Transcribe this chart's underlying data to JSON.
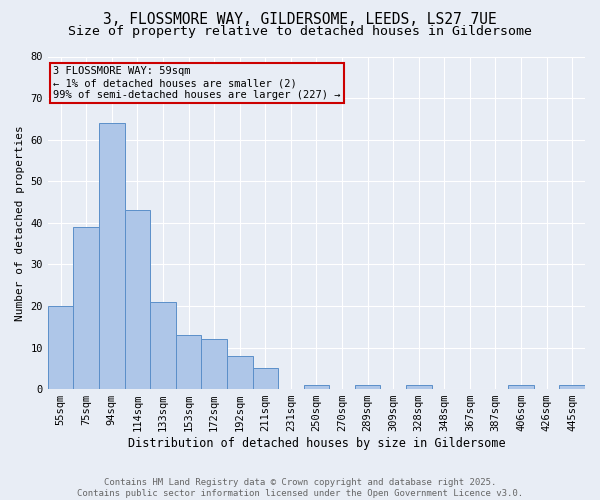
{
  "title": "3, FLOSSMORE WAY, GILDERSOME, LEEDS, LS27 7UE",
  "subtitle": "Size of property relative to detached houses in Gildersome",
  "xlabel": "Distribution of detached houses by size in Gildersome",
  "ylabel": "Number of detached properties",
  "categories": [
    "55sqm",
    "75sqm",
    "94sqm",
    "114sqm",
    "133sqm",
    "153sqm",
    "172sqm",
    "192sqm",
    "211sqm",
    "231sqm",
    "250sqm",
    "270sqm",
    "289sqm",
    "309sqm",
    "328sqm",
    "348sqm",
    "367sqm",
    "387sqm",
    "406sqm",
    "426sqm",
    "445sqm"
  ],
  "values": [
    20,
    39,
    64,
    43,
    21,
    13,
    12,
    8,
    5,
    0,
    1,
    0,
    1,
    0,
    1,
    0,
    0,
    0,
    1,
    0,
    1
  ],
  "bar_color": "#aec6e8",
  "bar_edge_color": "#5b8fc9",
  "background_color": "#e8edf5",
  "grid_color": "#ffffff",
  "annotation_box_color": "#cc0000",
  "annotation_text": "3 FLOSSMORE WAY: 59sqm\n← 1% of detached houses are smaller (2)\n99% of semi-detached houses are larger (227) →",
  "ylim": [
    0,
    80
  ],
  "yticks": [
    0,
    10,
    20,
    30,
    40,
    50,
    60,
    70,
    80
  ],
  "footer_text": "Contains HM Land Registry data © Crown copyright and database right 2025.\nContains public sector information licensed under the Open Government Licence v3.0.",
  "title_fontsize": 10.5,
  "subtitle_fontsize": 9.5,
  "xlabel_fontsize": 8.5,
  "ylabel_fontsize": 8,
  "tick_fontsize": 7.5,
  "annotation_fontsize": 7.5,
  "footer_fontsize": 6.5
}
